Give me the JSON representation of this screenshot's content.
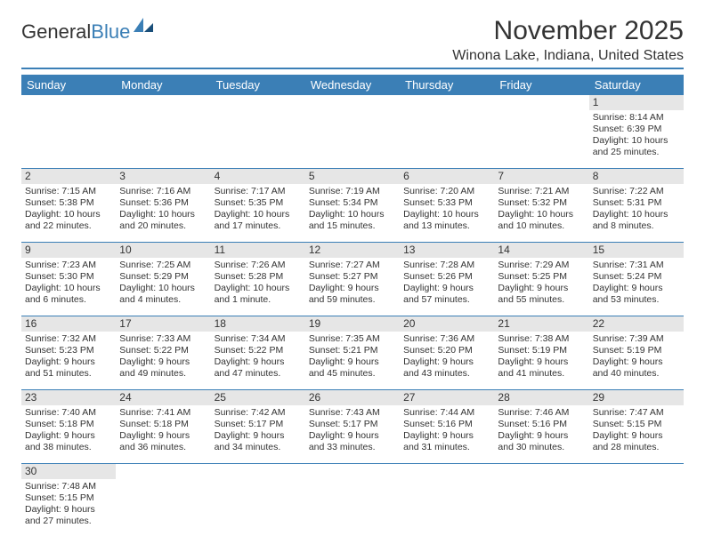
{
  "brand": {
    "part1": "General",
    "part2": "Blue"
  },
  "title": "November 2025",
  "location": "Winona Lake, Indiana, United States",
  "colors": {
    "accent": "#3b7fb6",
    "grey": "#e6e6e6"
  },
  "dayHeaders": [
    "Sunday",
    "Monday",
    "Tuesday",
    "Wednesday",
    "Thursday",
    "Friday",
    "Saturday"
  ],
  "weeks": [
    [
      null,
      null,
      null,
      null,
      null,
      null,
      {
        "n": "1",
        "sr": "Sunrise: 8:14 AM",
        "ss": "Sunset: 6:39 PM",
        "dl": "Daylight: 10 hours and 25 minutes."
      }
    ],
    [
      {
        "n": "2",
        "sr": "Sunrise: 7:15 AM",
        "ss": "Sunset: 5:38 PM",
        "dl": "Daylight: 10 hours and 22 minutes."
      },
      {
        "n": "3",
        "sr": "Sunrise: 7:16 AM",
        "ss": "Sunset: 5:36 PM",
        "dl": "Daylight: 10 hours and 20 minutes."
      },
      {
        "n": "4",
        "sr": "Sunrise: 7:17 AM",
        "ss": "Sunset: 5:35 PM",
        "dl": "Daylight: 10 hours and 17 minutes."
      },
      {
        "n": "5",
        "sr": "Sunrise: 7:19 AM",
        "ss": "Sunset: 5:34 PM",
        "dl": "Daylight: 10 hours and 15 minutes."
      },
      {
        "n": "6",
        "sr": "Sunrise: 7:20 AM",
        "ss": "Sunset: 5:33 PM",
        "dl": "Daylight: 10 hours and 13 minutes."
      },
      {
        "n": "7",
        "sr": "Sunrise: 7:21 AM",
        "ss": "Sunset: 5:32 PM",
        "dl": "Daylight: 10 hours and 10 minutes."
      },
      {
        "n": "8",
        "sr": "Sunrise: 7:22 AM",
        "ss": "Sunset: 5:31 PM",
        "dl": "Daylight: 10 hours and 8 minutes."
      }
    ],
    [
      {
        "n": "9",
        "sr": "Sunrise: 7:23 AM",
        "ss": "Sunset: 5:30 PM",
        "dl": "Daylight: 10 hours and 6 minutes."
      },
      {
        "n": "10",
        "sr": "Sunrise: 7:25 AM",
        "ss": "Sunset: 5:29 PM",
        "dl": "Daylight: 10 hours and 4 minutes."
      },
      {
        "n": "11",
        "sr": "Sunrise: 7:26 AM",
        "ss": "Sunset: 5:28 PM",
        "dl": "Daylight: 10 hours and 1 minute."
      },
      {
        "n": "12",
        "sr": "Sunrise: 7:27 AM",
        "ss": "Sunset: 5:27 PM",
        "dl": "Daylight: 9 hours and 59 minutes."
      },
      {
        "n": "13",
        "sr": "Sunrise: 7:28 AM",
        "ss": "Sunset: 5:26 PM",
        "dl": "Daylight: 9 hours and 57 minutes."
      },
      {
        "n": "14",
        "sr": "Sunrise: 7:29 AM",
        "ss": "Sunset: 5:25 PM",
        "dl": "Daylight: 9 hours and 55 minutes."
      },
      {
        "n": "15",
        "sr": "Sunrise: 7:31 AM",
        "ss": "Sunset: 5:24 PM",
        "dl": "Daylight: 9 hours and 53 minutes."
      }
    ],
    [
      {
        "n": "16",
        "sr": "Sunrise: 7:32 AM",
        "ss": "Sunset: 5:23 PM",
        "dl": "Daylight: 9 hours and 51 minutes."
      },
      {
        "n": "17",
        "sr": "Sunrise: 7:33 AM",
        "ss": "Sunset: 5:22 PM",
        "dl": "Daylight: 9 hours and 49 minutes."
      },
      {
        "n": "18",
        "sr": "Sunrise: 7:34 AM",
        "ss": "Sunset: 5:22 PM",
        "dl": "Daylight: 9 hours and 47 minutes."
      },
      {
        "n": "19",
        "sr": "Sunrise: 7:35 AM",
        "ss": "Sunset: 5:21 PM",
        "dl": "Daylight: 9 hours and 45 minutes."
      },
      {
        "n": "20",
        "sr": "Sunrise: 7:36 AM",
        "ss": "Sunset: 5:20 PM",
        "dl": "Daylight: 9 hours and 43 minutes."
      },
      {
        "n": "21",
        "sr": "Sunrise: 7:38 AM",
        "ss": "Sunset: 5:19 PM",
        "dl": "Daylight: 9 hours and 41 minutes."
      },
      {
        "n": "22",
        "sr": "Sunrise: 7:39 AM",
        "ss": "Sunset: 5:19 PM",
        "dl": "Daylight: 9 hours and 40 minutes."
      }
    ],
    [
      {
        "n": "23",
        "sr": "Sunrise: 7:40 AM",
        "ss": "Sunset: 5:18 PM",
        "dl": "Daylight: 9 hours and 38 minutes."
      },
      {
        "n": "24",
        "sr": "Sunrise: 7:41 AM",
        "ss": "Sunset: 5:18 PM",
        "dl": "Daylight: 9 hours and 36 minutes."
      },
      {
        "n": "25",
        "sr": "Sunrise: 7:42 AM",
        "ss": "Sunset: 5:17 PM",
        "dl": "Daylight: 9 hours and 34 minutes."
      },
      {
        "n": "26",
        "sr": "Sunrise: 7:43 AM",
        "ss": "Sunset: 5:17 PM",
        "dl": "Daylight: 9 hours and 33 minutes."
      },
      {
        "n": "27",
        "sr": "Sunrise: 7:44 AM",
        "ss": "Sunset: 5:16 PM",
        "dl": "Daylight: 9 hours and 31 minutes."
      },
      {
        "n": "28",
        "sr": "Sunrise: 7:46 AM",
        "ss": "Sunset: 5:16 PM",
        "dl": "Daylight: 9 hours and 30 minutes."
      },
      {
        "n": "29",
        "sr": "Sunrise: 7:47 AM",
        "ss": "Sunset: 5:15 PM",
        "dl": "Daylight: 9 hours and 28 minutes."
      }
    ],
    [
      {
        "n": "30",
        "sr": "Sunrise: 7:48 AM",
        "ss": "Sunset: 5:15 PM",
        "dl": "Daylight: 9 hours and 27 minutes."
      },
      null,
      null,
      null,
      null,
      null,
      null
    ]
  ]
}
